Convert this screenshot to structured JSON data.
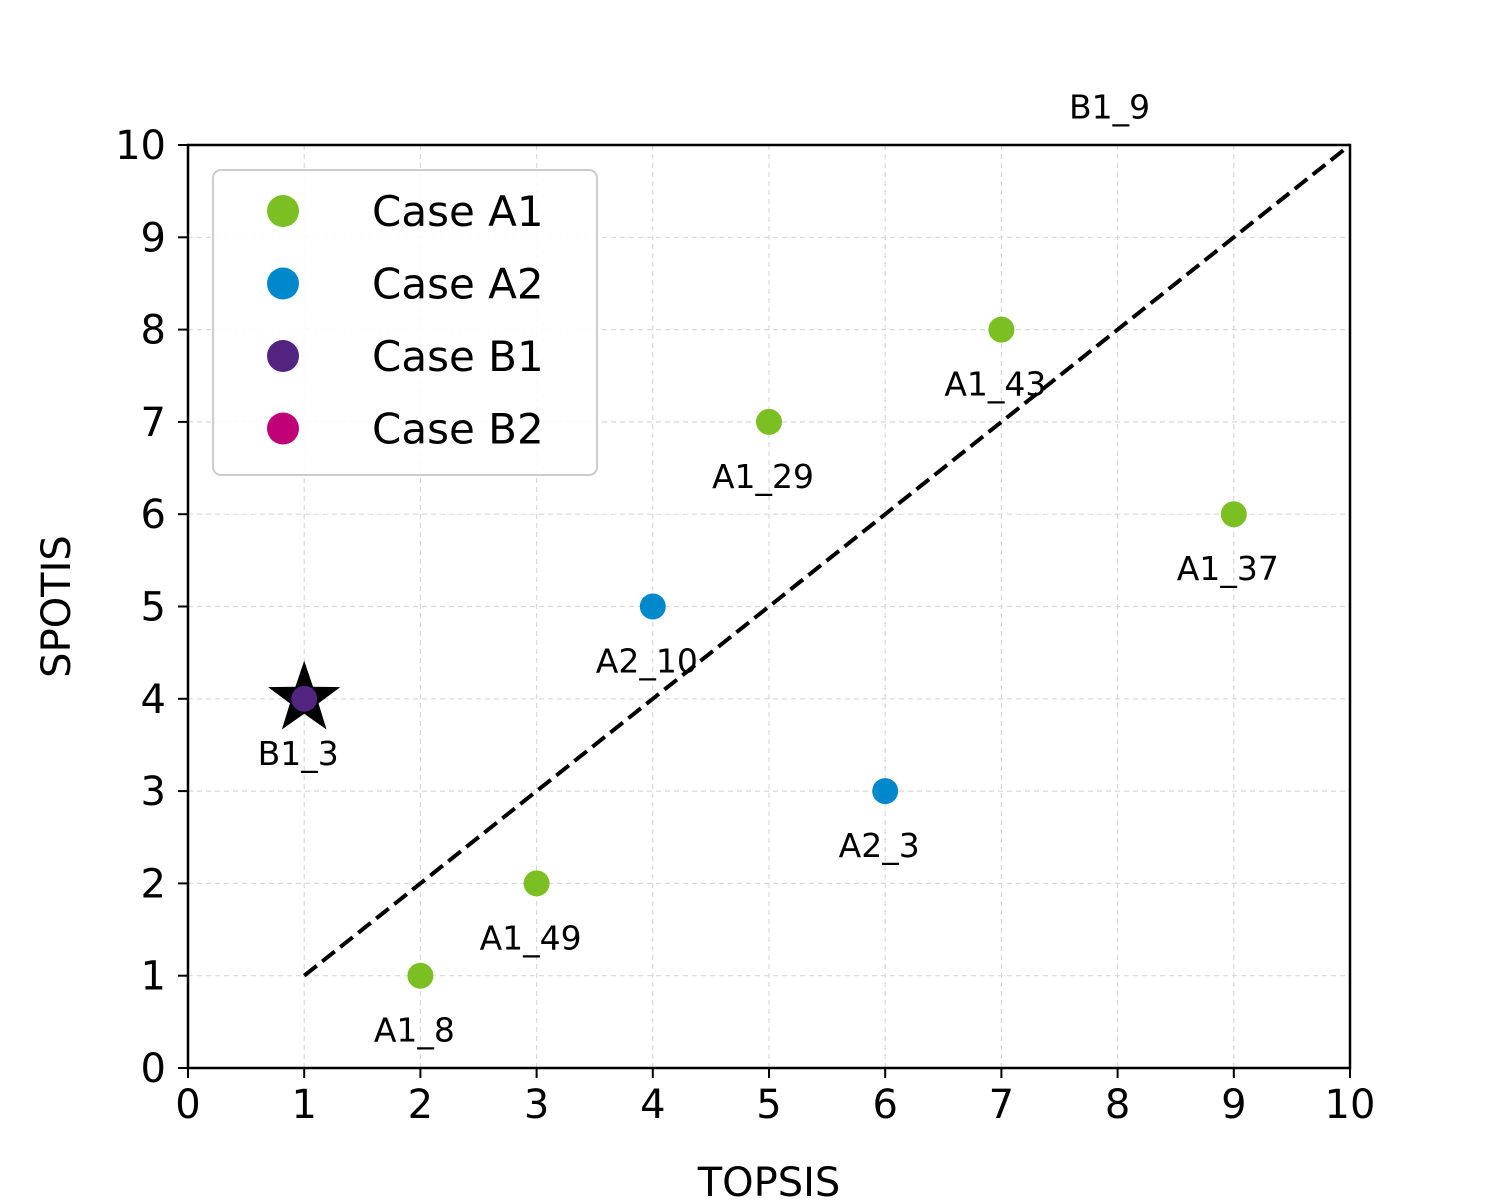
{
  "chart_data": {
    "type": "scatter",
    "xlabel": "TOPSIS",
    "ylabel": "SPOTIS",
    "xlim": [
      0,
      10
    ],
    "ylim": [
      0,
      10
    ],
    "xticks": [
      0,
      1,
      2,
      3,
      4,
      5,
      6,
      7,
      8,
      9,
      10
    ],
    "yticks": [
      0,
      1,
      2,
      3,
      4,
      5,
      6,
      7,
      8,
      9,
      10
    ],
    "grid": true,
    "legend_position": "top-left",
    "reference_line": {
      "style": "dashed",
      "color": "#000000",
      "points": [
        [
          1,
          1
        ],
        [
          10,
          10
        ]
      ]
    },
    "series": [
      {
        "name": "Case A1",
        "color": "#7bbf22",
        "points": [
          {
            "x": 5,
            "y": 7,
            "label": "A1_29"
          },
          {
            "x": 7,
            "y": 8,
            "label": "A1_43"
          },
          {
            "x": 9,
            "y": 6,
            "label": "A1_37"
          },
          {
            "x": 3,
            "y": 2,
            "label": "A1_49"
          },
          {
            "x": 2,
            "y": 1,
            "label": "A1_8"
          }
        ]
      },
      {
        "name": "Case A2",
        "color": "#0088cc",
        "points": [
          {
            "x": 4,
            "y": 5,
            "label": "A2_10"
          },
          {
            "x": 6,
            "y": 3,
            "label": "A2_3"
          }
        ]
      },
      {
        "name": "Case B1",
        "color": "#52237f",
        "points": [
          {
            "x": 1,
            "y": 4,
            "label": "B1_3",
            "star": true
          }
        ]
      },
      {
        "name": "Case B2",
        "color": "#bf0077",
        "points": []
      }
    ],
    "annotations": [
      {
        "x": 8,
        "y": 11,
        "text": "B1_9"
      }
    ]
  }
}
